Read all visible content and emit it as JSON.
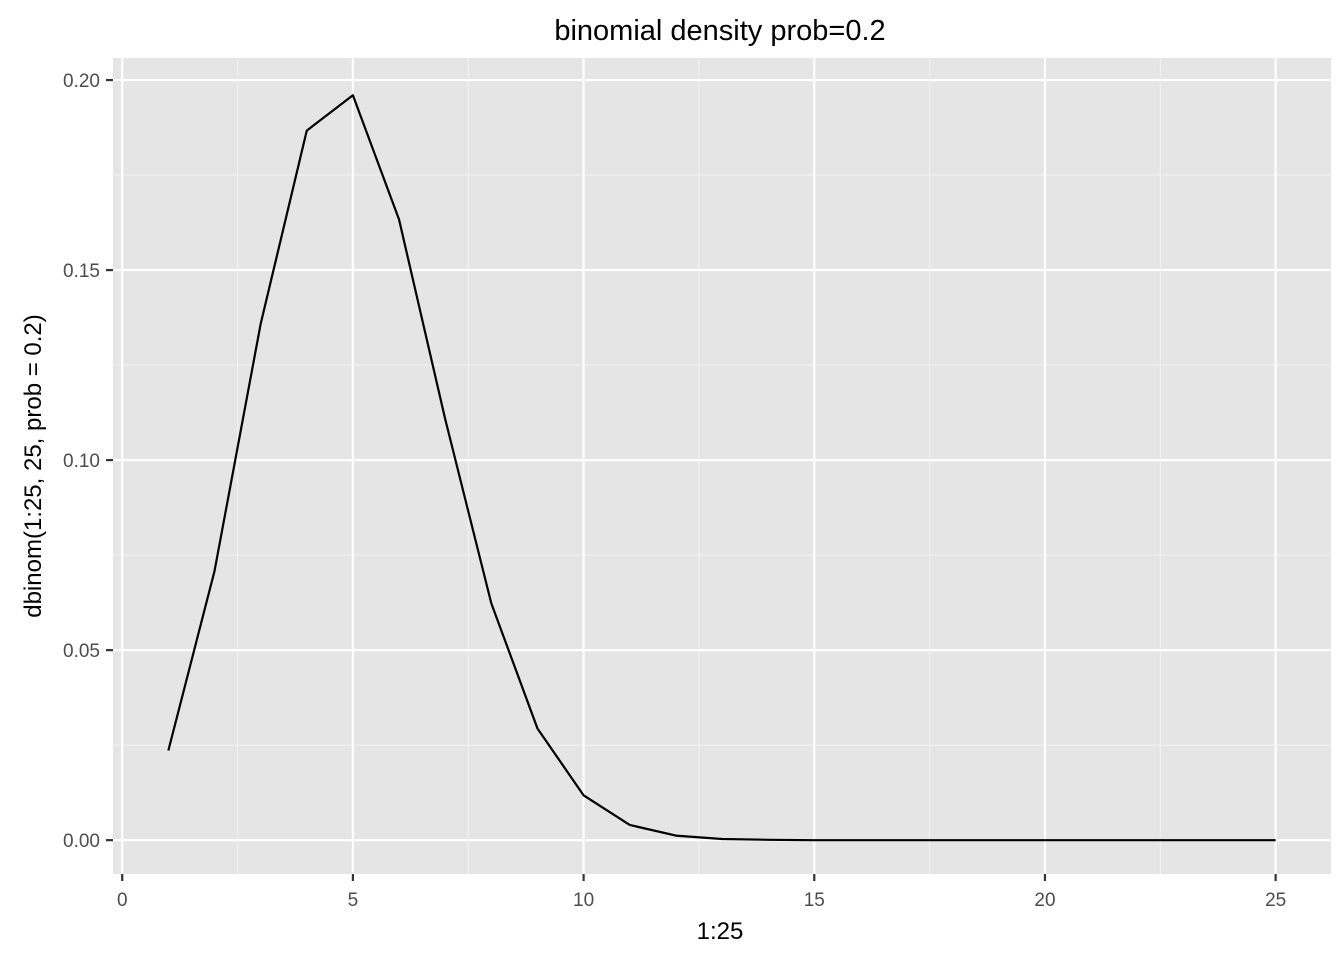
{
  "chart_data": {
    "type": "line",
    "title": "binomial density prob=0.2",
    "xlabel": "1:25",
    "ylabel": "dbinom(1:25, 25, prob = 0.2)",
    "xlim": [
      -0.2,
      26.2
    ],
    "ylim": [
      -0.0089,
      0.2058
    ],
    "x_ticks": [
      0,
      5,
      10,
      15,
      20,
      25
    ],
    "x_tick_labels": [
      "0",
      "5",
      "10",
      "15",
      "20",
      "25"
    ],
    "y_ticks": [
      0.0,
      0.05,
      0.1,
      0.15,
      0.2
    ],
    "y_tick_labels": [
      "0.00",
      "0.05",
      "0.10",
      "0.15",
      "0.20"
    ],
    "grid": true,
    "legend": "none",
    "line_color": "#000000",
    "panel_color": "#e5e5e5",
    "x": [
      1,
      2,
      3,
      4,
      5,
      6,
      7,
      8,
      9,
      10,
      11,
      12,
      13,
      14,
      15,
      16,
      17,
      18,
      19,
      20,
      21,
      22,
      23,
      24,
      25
    ],
    "series": [
      {
        "values": [
          0.0236,
          0.0708,
          0.1358,
          0.1867,
          0.196,
          0.1633,
          0.1108,
          0.0623,
          0.0294,
          0.0118,
          0.004,
          0.0012,
          0.0003,
          0.0001,
          0.0,
          0.0,
          0.0,
          0.0,
          0.0,
          0.0,
          0.0,
          0.0,
          0.0,
          0.0,
          0.0
        ]
      }
    ]
  }
}
